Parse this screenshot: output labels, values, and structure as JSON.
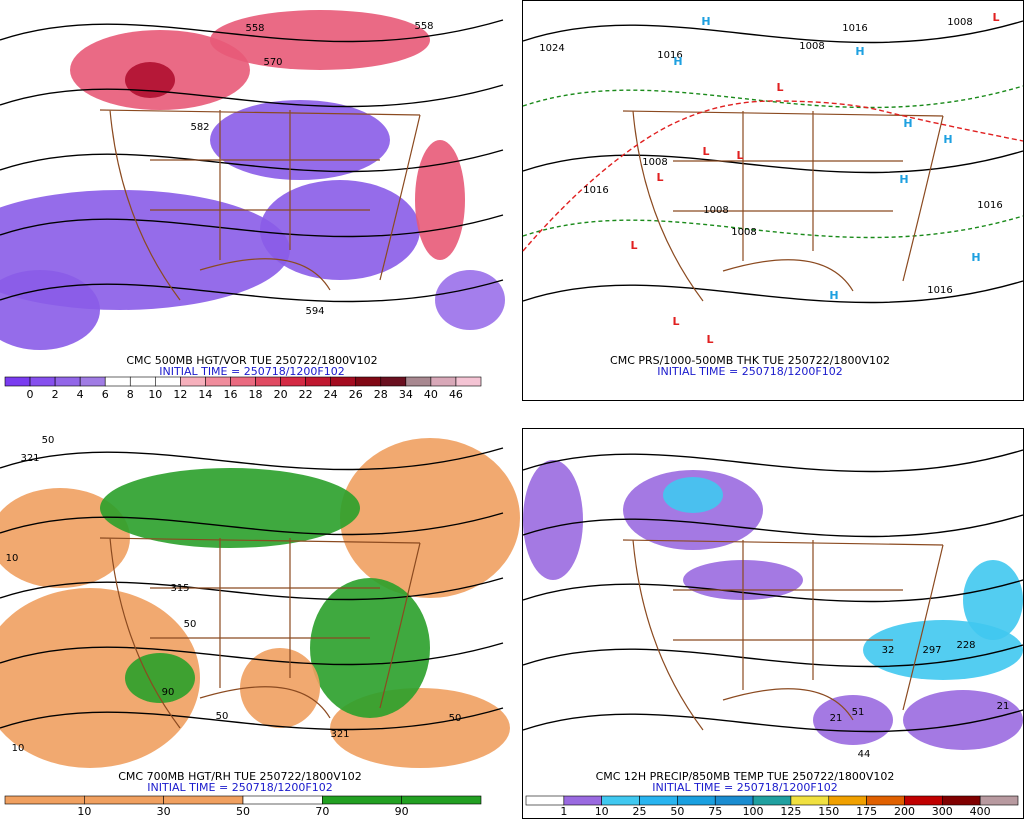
{
  "panels": [
    {
      "caption": "CMC 500MB HGT/VOR TUE 250722/1800V102",
      "initial": "INITIAL TIME = 250718/1200F102",
      "map_labels": [
        "558",
        "558",
        "570",
        "582",
        "594"
      ],
      "legend": {
        "labels": [
          0,
          2,
          4,
          6,
          8,
          10,
          12,
          14,
          16,
          18,
          20,
          22,
          24,
          26,
          28,
          34,
          40,
          46
        ],
        "colors": [
          "#7a3cf0",
          "#8650ee",
          "#9266e8",
          "#a07ce4",
          "#ffffff",
          "#ffffff",
          "#ffffff",
          "#f6b0bc",
          "#f08c9c",
          "#ea6a80",
          "#e04a62",
          "#d42a44",
          "#c01830",
          "#a40c20",
          "#800814",
          "#6a1020",
          "#a88890",
          "#d8a8b8",
          "#f4c4d4"
        ]
      }
    },
    {
      "caption": "CMC PRS/1000-500MB THK TUE 250722/1800V102",
      "initial": "INITIAL TIME = 250718/1200F102",
      "map_labels": [
        "1024",
        "1016",
        "1008",
        "1016",
        "1008",
        "1016",
        "1008",
        "1008",
        "1008",
        "1016",
        "1016"
      ],
      "highs": [
        "H",
        "H",
        "H",
        "H",
        "H",
        "H",
        "H",
        "H"
      ],
      "lows": [
        "L",
        "L",
        "L",
        "L",
        "L",
        "L",
        "L",
        "L"
      ]
    },
    {
      "caption": "CMC 700MB HGT/RH TUE 250722/1800V102",
      "initial": "INITIAL TIME = 250718/1200F102",
      "map_labels": [
        "321",
        "50",
        "10",
        "315",
        "50",
        "90",
        "50",
        "10",
        "321",
        "50"
      ],
      "legend": {
        "labels": [
          10,
          30,
          50,
          70,
          90
        ],
        "colors": [
          "#f0a060",
          "#f0a060",
          "#f0a060",
          "#ffffff",
          "#22a022",
          "#22a022"
        ]
      }
    },
    {
      "caption": "CMC 12H PRECIP/850MB TEMP TUE 250722/1800V102",
      "initial": "INITIAL TIME = 250718/1200F102",
      "map_labels": [
        "21",
        "51",
        "44",
        "32",
        "297",
        "228",
        "21"
      ],
      "legend": {
        "labels": [
          1,
          10,
          25,
          50,
          75,
          100,
          125,
          150,
          175,
          200,
          300,
          400
        ],
        "colors": [
          "#ffffff",
          "#9a6ae0",
          "#40c8f0",
          "#28b4f0",
          "#1aa0e0",
          "#1a8cd0",
          "#20a0a0",
          "#f0e040",
          "#f0a000",
          "#e06000",
          "#c00000",
          "#800000",
          "#b89aa0"
        ]
      }
    }
  ]
}
